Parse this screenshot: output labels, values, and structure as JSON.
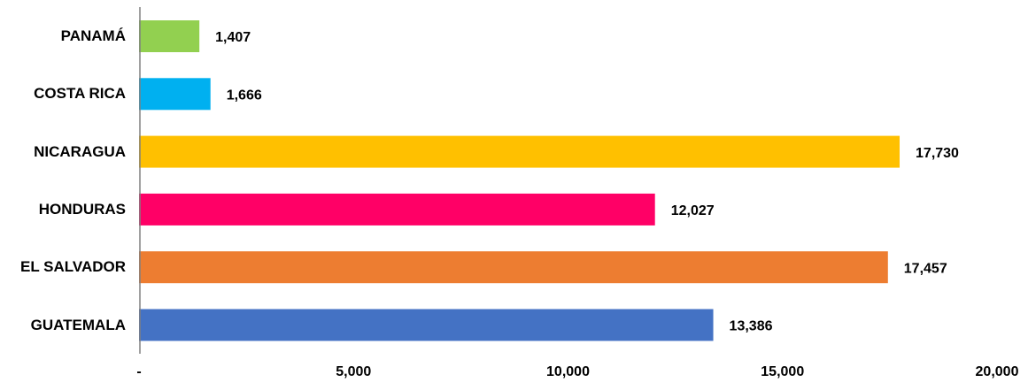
{
  "chart_data": {
    "type": "bar",
    "orientation": "horizontal",
    "categories": [
      "PANAMÁ",
      "COSTA RICA",
      "NICARAGUA",
      "HONDURAS",
      "EL SALVADOR",
      "GUATEMALA"
    ],
    "values": [
      1407,
      1666,
      17730,
      12027,
      17457,
      13386
    ],
    "value_labels": [
      "1,407",
      "1,666",
      "17,730",
      "12,027",
      "17,457",
      "13,386"
    ],
    "colors": [
      "#92d050",
      "#00b0f0",
      "#ffc000",
      "#ff0066",
      "#ed7d31",
      "#4472c4"
    ],
    "xlim": [
      0,
      20000
    ],
    "xticks": [
      {
        "value": 0,
        "label": "-"
      },
      {
        "value": 5000,
        "label": "5,000"
      },
      {
        "value": 10000,
        "label": "10,000"
      },
      {
        "value": 15000,
        "label": "15,000"
      },
      {
        "value": 20000,
        "label": "20,000"
      }
    ],
    "grid": false
  }
}
